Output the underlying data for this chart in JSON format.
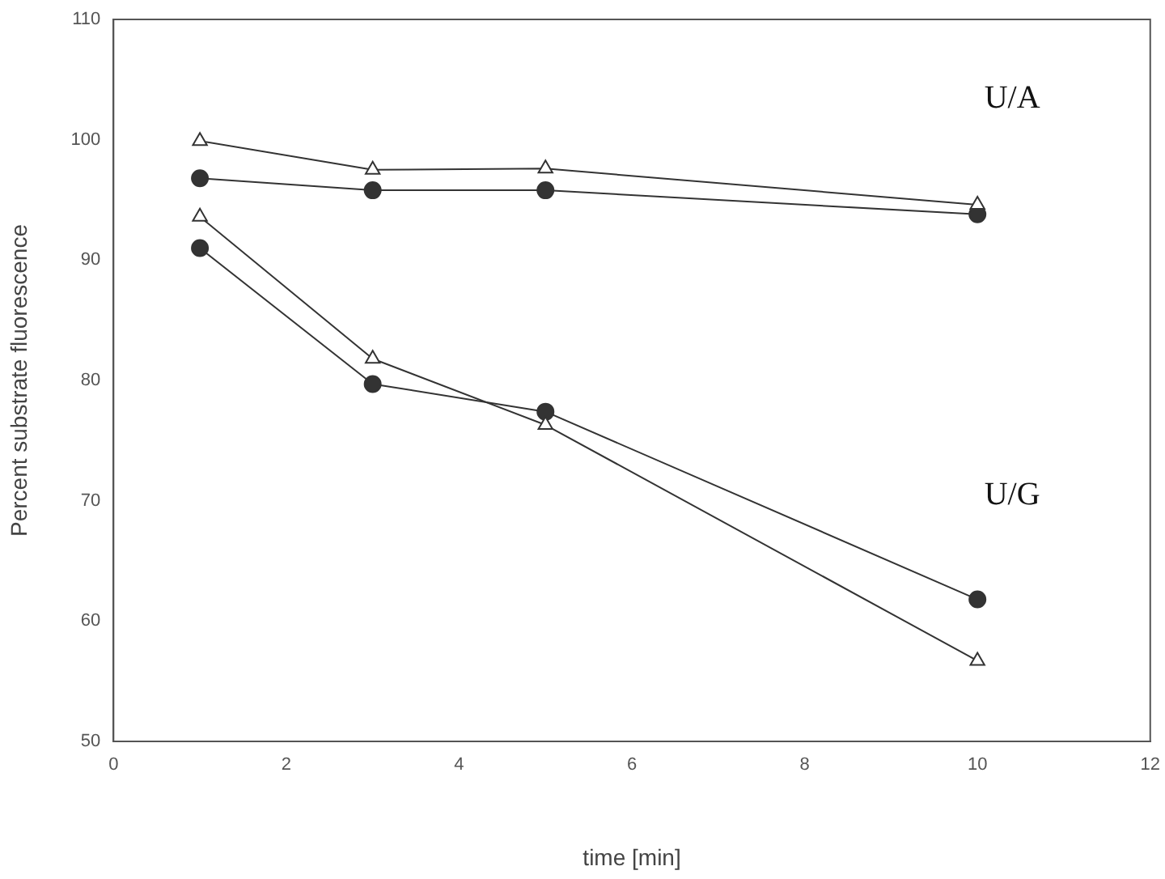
{
  "chart_data": {
    "type": "line",
    "xlabel": "time [min]",
    "ylabel": "Percent substrate fluorescence",
    "xlim": [
      0,
      12
    ],
    "xticks": [
      0,
      2,
      4,
      6,
      8,
      10,
      12
    ],
    "ylim": [
      50,
      110
    ],
    "yticks": [
      50,
      60,
      70,
      80,
      90,
      100,
      110
    ],
    "grid": false,
    "legend": false,
    "x": [
      1,
      3,
      5,
      10
    ],
    "series": [
      {
        "color": "#333333",
        "marker": "triangle",
        "values": [
          99.9,
          97.5,
          97.6,
          94.6
        ]
      },
      {
        "color": "#333333",
        "marker": "circle",
        "values": [
          96.8,
          95.8,
          95.8,
          93.8
        ]
      },
      {
        "color": "#333333",
        "marker": "triangle",
        "values": [
          93.6,
          81.8,
          76.3,
          56.7
        ]
      },
      {
        "color": "#333333",
        "marker": "circle",
        "values": [
          91.0,
          79.7,
          77.4,
          61.8
        ]
      }
    ],
    "annotations": [
      "U/A",
      "U/G"
    ]
  }
}
